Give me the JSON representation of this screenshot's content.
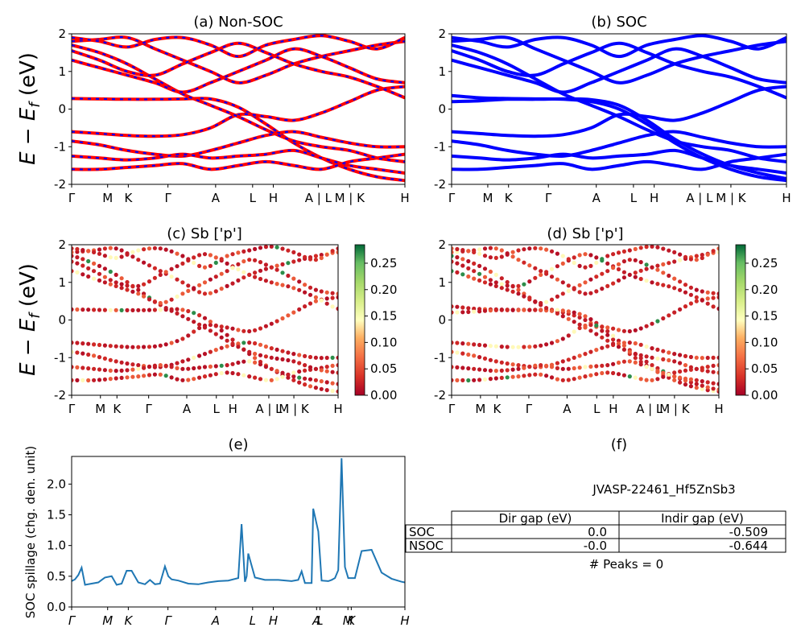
{
  "figure_id": "JVASP-22461_Hf5ZnSb3",
  "colors": {
    "nonsoc_band": "#ff0000",
    "nonsoc_dash": "#0000ff",
    "soc_band": "#0000ff",
    "spillage_line": "#1f77b4"
  },
  "kpath": {
    "labels": [
      "Γ",
      "M",
      "K",
      "Γ",
      "A",
      "L",
      "H",
      "A | L",
      "M | K",
      "H"
    ],
    "positions": [
      0,
      0.108,
      0.17,
      0.289,
      0.432,
      0.543,
      0.605,
      0.74,
      0.834,
      1
    ]
  },
  "spillage_kpath": {
    "labels": [
      "Γ",
      "M",
      "K",
      "Γ",
      "A",
      "L",
      "H",
      "A",
      "L",
      "M",
      "K",
      "H"
    ],
    "positions": [
      0,
      0.108,
      0.17,
      0.289,
      0.432,
      0.543,
      0.605,
      0.735,
      0.745,
      0.829,
      0.839,
      1
    ]
  },
  "band_ylabel": "E − E",
  "band_ylabel_sub": "f",
  "band_ylabel_unit": " (eV)",
  "colorbar": {
    "ticks": [
      "0.00",
      "0.05",
      "0.10",
      "0.15",
      "0.20",
      "0.25"
    ],
    "max": 0.285
  },
  "chart_data": [
    {
      "id": "a",
      "type": "line",
      "title": "(a) Non-SOC",
      "ylabel": "E − E_f (eV)",
      "ylim": [
        -2,
        2
      ],
      "yticks": [
        -2,
        -1,
        0,
        1,
        2
      ],
      "bands": [
        [
          0.28,
          0.27,
          0.26,
          0.26,
          0.27,
          0.27,
          0.05,
          -0.4,
          -0.9,
          -1.3,
          -1.6,
          -1.8,
          -1.9
        ],
        [
          -0.6,
          -0.65,
          -0.7,
          -0.72,
          -0.68,
          -0.5,
          -0.15,
          -0.2,
          -0.3,
          -0.1,
          0.2,
          0.5,
          0.6
        ],
        [
          -0.85,
          -0.95,
          -1.1,
          -1.2,
          -1.25,
          -1.1,
          -0.9,
          -0.7,
          -0.6,
          -0.75,
          -0.9,
          -1.0,
          -1.0
        ],
        [
          -1.25,
          -1.3,
          -1.35,
          -1.3,
          -1.2,
          -1.3,
          -1.25,
          -1.2,
          -1.1,
          -1.3,
          -1.5,
          -1.6,
          -1.7
        ],
        [
          -1.6,
          -1.6,
          -1.55,
          -1.5,
          -1.45,
          -1.6,
          -1.5,
          -1.4,
          -1.5,
          -1.6,
          -1.4,
          -1.3,
          -1.2
        ],
        [
          1.7,
          1.5,
          1.2,
          0.8,
          0.4,
          0.1,
          -0.2,
          -0.55,
          -0.85,
          -1.0,
          -1.1,
          -1.3,
          -1.4
        ],
        [
          1.8,
          1.85,
          1.9,
          1.6,
          1.3,
          1.0,
          0.7,
          0.9,
          1.2,
          1.4,
          1.55,
          1.7,
          1.8
        ],
        [
          1.55,
          1.3,
          1.0,
          0.9,
          1.2,
          1.5,
          1.75,
          1.5,
          1.2,
          1.0,
          0.85,
          0.6,
          0.3
        ],
        [
          1.3,
          1.1,
          0.9,
          0.7,
          0.45,
          0.7,
          1.0,
          1.3,
          1.6,
          1.4,
          1.1,
          0.8,
          0.7
        ],
        [
          1.9,
          1.8,
          1.65,
          1.85,
          1.9,
          1.7,
          1.4,
          1.7,
          1.85,
          1.95,
          1.8,
          1.6,
          1.9
        ]
      ]
    },
    {
      "id": "b",
      "type": "line",
      "title": "(b) SOC",
      "ylim": [
        -2,
        2
      ],
      "yticks": [
        -2,
        -1,
        0,
        1,
        2
      ],
      "bands": [
        [
          0.36,
          0.3,
          0.28,
          0.27,
          0.26,
          0.2,
          0.0,
          -0.4,
          -0.9,
          -1.3,
          -1.6,
          -1.8,
          -1.9
        ],
        [
          0.2,
          0.22,
          0.26,
          0.26,
          0.27,
          0.25,
          0.1,
          -0.3,
          -0.8,
          -1.2,
          -1.5,
          -1.7,
          -1.85
        ],
        [
          -0.6,
          -0.65,
          -0.7,
          -0.72,
          -0.68,
          -0.5,
          -0.15,
          -0.2,
          -0.3,
          -0.1,
          0.2,
          0.5,
          0.6
        ],
        [
          -0.85,
          -0.95,
          -1.1,
          -1.2,
          -1.25,
          -1.1,
          -0.9,
          -0.7,
          -0.6,
          -0.75,
          -0.9,
          -1.0,
          -1.0
        ],
        [
          -1.25,
          -1.3,
          -1.35,
          -1.3,
          -1.2,
          -1.3,
          -1.25,
          -1.2,
          -1.1,
          -1.3,
          -1.5,
          -1.6,
          -1.7
        ],
        [
          -1.6,
          -1.6,
          -1.55,
          -1.5,
          -1.45,
          -1.6,
          -1.5,
          -1.4,
          -1.5,
          -1.6,
          -1.4,
          -1.3,
          -1.2
        ],
        [
          1.7,
          1.5,
          1.2,
          0.8,
          0.4,
          0.1,
          -0.2,
          -0.55,
          -0.85,
          -1.0,
          -1.1,
          -1.3,
          -1.4
        ],
        [
          1.8,
          1.85,
          1.9,
          1.6,
          1.3,
          1.0,
          0.7,
          0.9,
          1.2,
          1.4,
          1.55,
          1.7,
          1.8
        ],
        [
          1.55,
          1.3,
          1.0,
          0.9,
          1.2,
          1.5,
          1.75,
          1.5,
          1.2,
          1.0,
          0.85,
          0.6,
          0.3
        ],
        [
          1.3,
          1.1,
          0.9,
          0.7,
          0.45,
          0.7,
          1.0,
          1.3,
          1.6,
          1.4,
          1.1,
          0.8,
          0.7
        ],
        [
          1.9,
          1.8,
          1.65,
          1.85,
          1.9,
          1.7,
          1.4,
          1.7,
          1.85,
          1.95,
          1.8,
          1.6,
          1.9
        ]
      ]
    },
    {
      "id": "c",
      "type": "scatter",
      "title": "(c)  Sb ['p']",
      "ylabel": "E − E_f (eV)",
      "ylim": [
        -2,
        2
      ],
      "yticks": [
        -2,
        -1,
        0,
        1,
        2
      ],
      "weight_range": [
        0,
        0.285
      ],
      "bands": [
        [
          0.28,
          0.27,
          0.26,
          0.26,
          0.27,
          0.27,
          0.05,
          -0.4,
          -0.9,
          -1.3,
          -1.6,
          -1.8,
          -1.9
        ],
        [
          -0.6,
          -0.65,
          -0.7,
          -0.72,
          -0.68,
          -0.5,
          -0.15,
          -0.2,
          -0.3,
          -0.1,
          0.2,
          0.5,
          0.6
        ],
        [
          -0.85,
          -0.95,
          -1.1,
          -1.2,
          -1.25,
          -1.1,
          -0.9,
          -0.7,
          -0.6,
          -0.75,
          -0.9,
          -1.0,
          -1.0
        ],
        [
          -1.25,
          -1.3,
          -1.35,
          -1.3,
          -1.2,
          -1.3,
          -1.25,
          -1.2,
          -1.1,
          -1.3,
          -1.5,
          -1.6,
          -1.7
        ],
        [
          -1.6,
          -1.6,
          -1.55,
          -1.5,
          -1.45,
          -1.6,
          -1.5,
          -1.4,
          -1.5,
          -1.6,
          -1.4,
          -1.3,
          -1.2
        ],
        [
          1.7,
          1.5,
          1.2,
          0.8,
          0.4,
          0.1,
          -0.2,
          -0.55,
          -0.85,
          -1.0,
          -1.1,
          -1.3,
          -1.4
        ],
        [
          1.8,
          1.85,
          1.9,
          1.6,
          1.3,
          1.0,
          0.7,
          0.9,
          1.2,
          1.4,
          1.55,
          1.7,
          1.8
        ],
        [
          1.55,
          1.3,
          1.0,
          0.9,
          1.2,
          1.5,
          1.75,
          1.5,
          1.2,
          1.0,
          0.85,
          0.6,
          0.3
        ],
        [
          1.3,
          1.1,
          0.9,
          0.7,
          0.45,
          0.7,
          1.0,
          1.3,
          1.6,
          1.4,
          1.1,
          0.8,
          0.7
        ],
        [
          1.9,
          1.8,
          1.65,
          1.85,
          1.9,
          1.7,
          1.4,
          1.7,
          1.85,
          1.95,
          1.8,
          1.6,
          1.9
        ]
      ]
    },
    {
      "id": "d",
      "type": "scatter",
      "title": "(d) Sb ['p']",
      "ylim": [
        -2,
        2
      ],
      "yticks": [
        -2,
        -1,
        0,
        1,
        2
      ],
      "weight_range": [
        0,
        0.285
      ],
      "bands": [
        [
          0.36,
          0.3,
          0.28,
          0.27,
          0.26,
          0.2,
          0.0,
          -0.4,
          -0.9,
          -1.3,
          -1.6,
          -1.8,
          -1.9
        ],
        [
          0.2,
          0.22,
          0.26,
          0.26,
          0.27,
          0.25,
          0.1,
          -0.3,
          -0.8,
          -1.2,
          -1.5,
          -1.7,
          -1.85
        ],
        [
          -0.6,
          -0.65,
          -0.7,
          -0.72,
          -0.68,
          -0.5,
          -0.15,
          -0.2,
          -0.3,
          -0.1,
          0.2,
          0.5,
          0.6
        ],
        [
          -0.85,
          -0.95,
          -1.1,
          -1.2,
          -1.25,
          -1.1,
          -0.9,
          -0.7,
          -0.6,
          -0.75,
          -0.9,
          -1.0,
          -1.0
        ],
        [
          -1.25,
          -1.3,
          -1.35,
          -1.3,
          -1.2,
          -1.3,
          -1.25,
          -1.2,
          -1.1,
          -1.3,
          -1.5,
          -1.6,
          -1.7
        ],
        [
          -1.6,
          -1.6,
          -1.55,
          -1.5,
          -1.45,
          -1.6,
          -1.5,
          -1.4,
          -1.5,
          -1.6,
          -1.4,
          -1.3,
          -1.2
        ],
        [
          1.7,
          1.5,
          1.2,
          0.8,
          0.4,
          0.1,
          -0.2,
          -0.55,
          -0.85,
          -1.0,
          -1.1,
          -1.3,
          -1.4
        ],
        [
          1.8,
          1.85,
          1.9,
          1.6,
          1.3,
          1.0,
          0.7,
          0.9,
          1.2,
          1.4,
          1.55,
          1.7,
          1.8
        ],
        [
          1.55,
          1.3,
          1.0,
          0.9,
          1.2,
          1.5,
          1.75,
          1.5,
          1.2,
          1.0,
          0.85,
          0.6,
          0.3
        ],
        [
          1.3,
          1.1,
          0.9,
          0.7,
          0.45,
          0.7,
          1.0,
          1.3,
          1.6,
          1.4,
          1.1,
          0.8,
          0.7
        ],
        [
          1.9,
          1.8,
          1.65,
          1.85,
          1.9,
          1.7,
          1.4,
          1.7,
          1.85,
          1.95,
          1.8,
          1.6,
          1.9
        ]
      ]
    },
    {
      "id": "e",
      "type": "line",
      "title": "(e)",
      "ylabel": "SOC spillage (chg. den. unit)",
      "ylim": [
        0,
        2.45
      ],
      "yticks": [
        "0.0",
        "0.5",
        "1.0",
        "1.5",
        "2.0"
      ],
      "x": [
        0,
        0.01,
        0.02,
        0.03,
        0.04,
        0.06,
        0.08,
        0.1,
        0.12,
        0.135,
        0.15,
        0.165,
        0.18,
        0.2,
        0.22,
        0.235,
        0.25,
        0.265,
        0.28,
        0.29,
        0.3,
        0.32,
        0.35,
        0.38,
        0.41,
        0.44,
        0.47,
        0.5,
        0.51,
        0.52,
        0.525,
        0.53,
        0.55,
        0.58,
        0.62,
        0.66,
        0.68,
        0.69,
        0.7,
        0.72,
        0.725,
        0.74,
        0.75,
        0.77,
        0.78,
        0.79,
        0.8,
        0.81,
        0.82,
        0.83,
        0.85,
        0.87,
        0.9,
        0.93,
        0.96,
        0.99,
        1.0
      ],
      "values": [
        0.42,
        0.45,
        0.52,
        0.64,
        0.36,
        0.38,
        0.4,
        0.48,
        0.5,
        0.36,
        0.38,
        0.59,
        0.59,
        0.4,
        0.37,
        0.44,
        0.37,
        0.38,
        0.66,
        0.5,
        0.45,
        0.43,
        0.38,
        0.37,
        0.4,
        0.42,
        0.43,
        0.47,
        1.35,
        0.41,
        0.5,
        0.87,
        0.48,
        0.44,
        0.44,
        0.42,
        0.44,
        0.58,
        0.39,
        0.39,
        1.6,
        1.23,
        0.43,
        0.42,
        0.44,
        0.47,
        0.6,
        2.42,
        0.65,
        0.47,
        0.47,
        0.91,
        0.93,
        0.56,
        0.46,
        0.41,
        0.4
      ]
    }
  ],
  "table": {
    "title": "(f)",
    "caption": "JVASP-22461_Hf5ZnSb3",
    "headers": [
      "",
      "Dir gap (eV)",
      "Indir gap (eV)"
    ],
    "rows": [
      [
        "SOC",
        "0.0",
        "-0.509"
      ],
      [
        "NSOC",
        "-0.0",
        "-0.644"
      ]
    ],
    "footer": "# Peaks = 0"
  }
}
